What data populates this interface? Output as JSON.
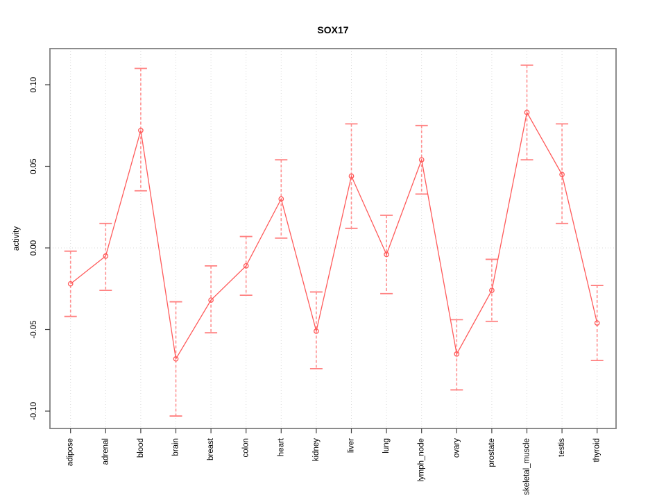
{
  "page": {
    "background": "#ffffff"
  },
  "chart_data": {
    "type": "line",
    "title": "SOX17",
    "xlabel": "",
    "ylabel": "activity",
    "legend_position": "none",
    "grid": {
      "vertical_dotted_per_category": true,
      "horizontal_dotted_at_zero": true
    },
    "marker": "open-circle",
    "categories": [
      "adipose",
      "adrenal",
      "blood",
      "brain",
      "breast",
      "colon",
      "heart",
      "kidney",
      "liver",
      "lung",
      "lymph_node",
      "ovary",
      "prostate",
      "skeletal_muscle",
      "testis",
      "thyroid"
    ],
    "series": [
      {
        "name": "activity",
        "values": [
          -0.022,
          -0.005,
          0.072,
          -0.068,
          -0.032,
          -0.011,
          0.03,
          -0.051,
          0.044,
          -0.004,
          0.054,
          -0.065,
          -0.026,
          0.083,
          0.045,
          -0.046
        ],
        "upper": [
          -0.002,
          0.015,
          0.11,
          -0.033,
          -0.011,
          0.007,
          0.054,
          -0.027,
          0.076,
          0.02,
          0.075,
          -0.044,
          -0.007,
          0.112,
          0.076,
          -0.023
        ],
        "lower": [
          -0.042,
          -0.026,
          0.035,
          -0.103,
          -0.052,
          -0.029,
          0.006,
          -0.074,
          0.012,
          -0.028,
          0.033,
          -0.087,
          -0.045,
          0.054,
          0.015,
          -0.069
        ]
      }
    ],
    "yticks": [
      0.1,
      0.05,
      0.0,
      -0.05,
      -0.1
    ],
    "ytick_labels": [
      "0.10",
      "0.05",
      "0.00",
      "-0.05",
      "-0.10"
    ],
    "ylim": [
      -0.111,
      0.122
    ],
    "colors": {
      "line": "#ff5a5a",
      "error_bar": "#ff9090",
      "error_cap": "#ff8080",
      "marker": "#ff5a5a",
      "gridline": "#d9d9d9",
      "border": "#808080",
      "tick": "#404040",
      "text": "#000000"
    }
  }
}
